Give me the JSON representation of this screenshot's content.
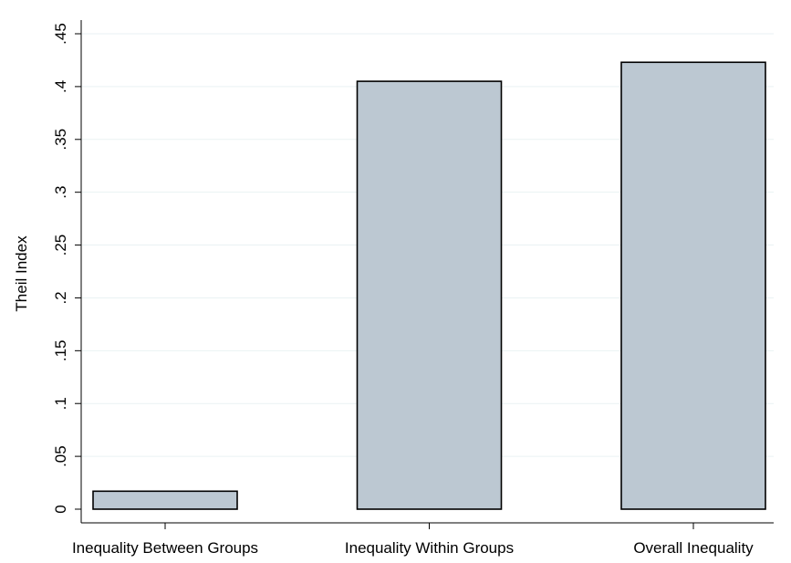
{
  "chart_data": {
    "type": "bar",
    "categories": [
      "Inequality Between Groups",
      "Inequality Within Groups",
      "Overall Inequality"
    ],
    "values": [
      0.017,
      0.405,
      0.423
    ],
    "title": "",
    "xlabel": "",
    "ylabel": "Theil Index",
    "ylim": [
      0,
      0.45
    ],
    "yticks": [
      0,
      0.05,
      0.1,
      0.15,
      0.2,
      0.25,
      0.3,
      0.35,
      0.4,
      0.45
    ],
    "ytick_labels": [
      "0",
      ".05",
      ".1",
      ".15",
      ".2",
      ".25",
      ".3",
      ".35",
      ".4",
      ".45"
    ],
    "grid": true,
    "bar_color": "#bcc8d2",
    "bar_edge_color": "#000000",
    "grid_color": "#eaf2f3"
  }
}
